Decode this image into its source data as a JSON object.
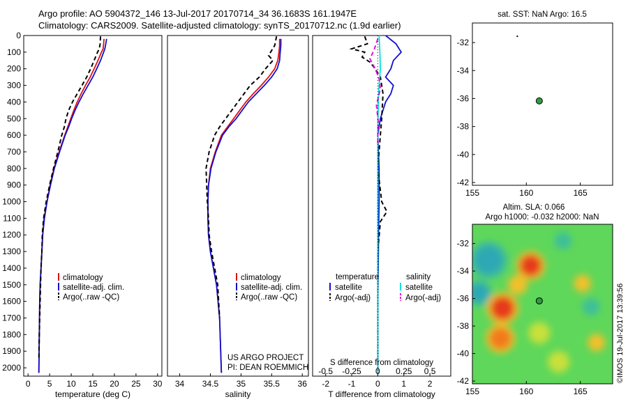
{
  "header": {
    "line1": "Argo profile: AO 5904372_146 13-Jul-2017 20170714_34 36.1683S 161.1947E",
    "line2": "Climatology: CARS2009. Satellite-adjusted climatology: synTS_20170712.nc (1.9d earlier)"
  },
  "watermark": "©IMOS 19-Jul-2017 13:39:56",
  "colors": {
    "climatology": "#e01010",
    "satellite": "#1010d0",
    "argo": "#000000",
    "sal_satellite": "#00e0e0",
    "sal_argo": "#e010e0",
    "float_marker": "#2e9e3e"
  },
  "chart_data": [
    {
      "id": "temperature_profile",
      "type": "line",
      "xlabel": "temperature (deg C)",
      "xlim": [
        -1,
        31
      ],
      "xticks": [
        "0",
        "5",
        "10",
        "15",
        "20",
        "25",
        "30"
      ],
      "ylim": [
        2050,
        0
      ],
      "yticks": [
        "0",
        "100",
        "200",
        "300",
        "400",
        "500",
        "600",
        "700",
        "800",
        "900",
        "1000",
        "1100",
        "1200",
        "1300",
        "1400",
        "1500",
        "1600",
        "1700",
        "1800",
        "1900",
        "2000"
      ],
      "legend": [
        "climatology",
        "satellite-adj. clim.",
        "Argo(..raw -QC)"
      ],
      "series": [
        {
          "name": "climatology",
          "color": "#e01010",
          "x": [
            17.6,
            17.5,
            17.4,
            17.0,
            16.2,
            15.3,
            14.4,
            13.3,
            12.3,
            11.4,
            10.6,
            9.9,
            9.2,
            8.5,
            7.2,
            6.0,
            5.1,
            4.4,
            3.7,
            3.4,
            3.2,
            3.0,
            2.8,
            2.7,
            2.6,
            2.5
          ],
          "y": [
            20,
            50,
            80,
            100,
            150,
            200,
            250,
            300,
            350,
            400,
            450,
            500,
            550,
            600,
            700,
            800,
            900,
            1000,
            1100,
            1200,
            1300,
            1400,
            1500,
            1600,
            1800,
            2030
          ]
        },
        {
          "name": "satellite-adj. clim.",
          "color": "#1010d0",
          "x": [
            18.2,
            18.0,
            17.8,
            17.5,
            16.8,
            15.9,
            15.0,
            13.9,
            12.8,
            11.8,
            10.9,
            10.1,
            9.4,
            8.6,
            7.3,
            6.1,
            5.2,
            4.4,
            3.8,
            3.4,
            3.2,
            3.0,
            2.8,
            2.7,
            2.6,
            2.5
          ],
          "y": [
            20,
            50,
            80,
            100,
            150,
            200,
            250,
            300,
            350,
            400,
            450,
            500,
            550,
            600,
            700,
            800,
            900,
            1000,
            1100,
            1200,
            1300,
            1400,
            1500,
            1600,
            1800,
            2030
          ]
        },
        {
          "name": "Argo(..raw -QC)",
          "color": "#000000",
          "dash": "6,4",
          "x": [
            16.8,
            16.7,
            16.5,
            16.1,
            15.3,
            14.5,
            13.6,
            12.5,
            11.4,
            10.3,
            9.4,
            8.8,
            8.4,
            7.8,
            6.9,
            5.9,
            5.0,
            4.2,
            3.6,
            3.3,
            3.2,
            3.0,
            2.9,
            2.8,
            2.7,
            2.6,
            2.5
          ],
          "y": [
            5,
            50,
            80,
            100,
            150,
            200,
            250,
            300,
            350,
            400,
            450,
            500,
            550,
            600,
            700,
            800,
            900,
            1000,
            1100,
            1200,
            1300,
            1400,
            1500,
            1600,
            1700,
            1800,
            1950
          ]
        }
      ]
    },
    {
      "id": "salinity_profile",
      "type": "line",
      "xlabel": "salinity",
      "xlim": [
        33.8,
        36.1
      ],
      "xticks": [
        "34",
        "34.5",
        "35",
        "35.5",
        "36"
      ],
      "ylim": [
        2050,
        0
      ],
      "legend": [
        "climatology",
        "satellite-adj. clim.",
        "Argo(..raw -QC)"
      ],
      "annotation": [
        "US ARGO PROJECT",
        "PI: DEAN ROEMMICH"
      ],
      "series": [
        {
          "name": "climatology",
          "color": "#e01010",
          "x": [
            35.63,
            35.63,
            35.62,
            35.6,
            35.55,
            35.45,
            35.33,
            35.2,
            35.08,
            34.98,
            34.88,
            34.78,
            34.68,
            34.58,
            34.5,
            34.47,
            34.46,
            34.46,
            34.47,
            34.5,
            34.55,
            34.6,
            34.65,
            34.68
          ],
          "y": [
            20,
            60,
            100,
            150,
            200,
            250,
            300,
            350,
            400,
            450,
            500,
            550,
            600,
            700,
            800,
            900,
            1000,
            1100,
            1200,
            1300,
            1400,
            1500,
            1700,
            2030
          ]
        },
        {
          "name": "satellite-adj. clim.",
          "color": "#1010d0",
          "x": [
            35.65,
            35.65,
            35.64,
            35.63,
            35.59,
            35.5,
            35.38,
            35.25,
            35.12,
            35.02,
            34.92,
            34.8,
            34.7,
            34.59,
            34.51,
            34.47,
            34.46,
            34.46,
            34.47,
            34.5,
            34.55,
            34.6,
            34.65,
            34.68
          ],
          "y": [
            20,
            60,
            100,
            150,
            200,
            250,
            300,
            350,
            400,
            450,
            500,
            550,
            600,
            700,
            800,
            900,
            1000,
            1100,
            1200,
            1300,
            1400,
            1500,
            1700,
            2030
          ]
        },
        {
          "name": "Argo(..raw -QC)",
          "color": "#000000",
          "dash": "6,4",
          "x": [
            35.58,
            35.55,
            35.45,
            35.52,
            35.4,
            35.3,
            35.15,
            35.05,
            34.95,
            34.85,
            34.75,
            34.65,
            34.57,
            34.48,
            34.43,
            34.45,
            34.47,
            34.48,
            34.52,
            34.57,
            34.62,
            34.65
          ],
          "y": [
            5,
            60,
            120,
            150,
            200,
            250,
            300,
            350,
            400,
            450,
            500,
            550,
            600,
            700,
            800,
            1000,
            1100,
            1200,
            1300,
            1400,
            1500,
            1700
          ]
        }
      ]
    },
    {
      "id": "difference_profile",
      "type": "line",
      "xlabel": "T difference from climatology",
      "xlabel2": "S difference from climatology",
      "xlim": [
        -2.5,
        2.8
      ],
      "xticks": [
        "-2",
        "-1",
        "0",
        "1",
        "2"
      ],
      "xticks_s": [
        "-0.5",
        "-0.25",
        "0",
        "0.25",
        "0.5"
      ],
      "ylim": [
        2050,
        0
      ],
      "legend": {
        "temperature_title": "temperature",
        "salinity_title": "salinity",
        "items": [
          "satellite",
          "Argo(-adj)",
          "satellite",
          "Argo(-adj)"
        ]
      },
      "series": [
        {
          "name": "T satellite",
          "color": "#1010d0",
          "x": [
            0.3,
            0.7,
            0.9,
            0.6,
            0.5,
            0.3,
            0.6,
            0.5,
            0.3,
            0.1,
            0.0,
            0.05,
            0.05,
            0.03,
            0.02,
            0.0,
            0.0,
            0.0
          ],
          "y": [
            0,
            50,
            100,
            150,
            200,
            250,
            300,
            350,
            400,
            500,
            600,
            800,
            1000,
            1200,
            1400,
            1600,
            1800,
            2030
          ]
        },
        {
          "name": "T Argo",
          "color": "#000000",
          "dash": "6,4",
          "x": [
            -0.5,
            -0.4,
            -1.0,
            -0.5,
            -0.6,
            -0.3,
            -0.1,
            0.1,
            0.2,
            0.15,
            0.1,
            0.0,
            0.15,
            0.35,
            0.1,
            0.0,
            0.0,
            0.0,
            0.0
          ],
          "y": [
            5,
            50,
            80,
            100,
            130,
            160,
            200,
            250,
            350,
            500,
            600,
            800,
            1000,
            1060,
            1120,
            1300,
            1500,
            1700,
            1950
          ]
        },
        {
          "name": "S satellite",
          "color": "#00e0e0",
          "x": [
            0.05,
            0.08,
            0.1,
            0.05,
            0.02,
            0.0,
            0.0,
            0.0,
            0.0,
            0.0,
            0.0
          ],
          "y": [
            0,
            100,
            200,
            300,
            400,
            600,
            800,
            1000,
            1400,
            1800,
            2030
          ]
        },
        {
          "name": "S Argo",
          "color": "#e010e0",
          "dash": "6,4",
          "x": [
            0.0,
            -0.15,
            -0.3,
            -0.1,
            0.05,
            0.1,
            -0.05,
            0.02,
            0.0,
            0.0
          ],
          "y": [
            20,
            90,
            140,
            200,
            260,
            320,
            420,
            520,
            600,
            660
          ]
        }
      ]
    },
    {
      "id": "sst_map",
      "type": "scatter",
      "title": "sat. SST: NaN Argo: 16.5",
      "xlim": [
        155,
        168
      ],
      "ylim": [
        -42.2,
        -30.6
      ],
      "xticks": [
        "155",
        "160",
        "165"
      ],
      "yticks": [
        "-32",
        "-34",
        "-36",
        "-38",
        "-40",
        "-42"
      ],
      "points": [
        {
          "lon": 161.2,
          "lat": -36.17
        }
      ]
    },
    {
      "id": "sla_map",
      "type": "heatmap",
      "title": "Altim. SLA: 0.066",
      "subtitle": "Argo h1000: -0.032 h2000: NaN",
      "xlim": [
        155,
        168
      ],
      "ylim": [
        -42.2,
        -30.6
      ],
      "xticks": [
        "155",
        "160",
        "165"
      ],
      "yticks": [
        "-32",
        "-34",
        "-36",
        "-38",
        "-40",
        "-42"
      ],
      "points": [
        {
          "lon": 161.2,
          "lat": -36.17
        }
      ],
      "blobs": [
        {
          "lon": 156.5,
          "lat": -33.2,
          "r": 1.3,
          "v": -0.8
        },
        {
          "lon": 155.6,
          "lat": -35.6,
          "r": 0.9,
          "v": -0.7
        },
        {
          "lon": 163.4,
          "lat": -31.8,
          "r": 0.8,
          "v": -0.5
        },
        {
          "lon": 166.0,
          "lat": -36.6,
          "r": 0.8,
          "v": -0.5
        },
        {
          "lon": 160.4,
          "lat": -33.6,
          "r": 1.0,
          "v": 0.9
        },
        {
          "lon": 157.8,
          "lat": -36.7,
          "r": 1.1,
          "v": 1.0
        },
        {
          "lon": 157.6,
          "lat": -38.9,
          "r": 1.0,
          "v": 0.8
        },
        {
          "lon": 159.2,
          "lat": -35.0,
          "r": 0.9,
          "v": 0.5
        },
        {
          "lon": 165.2,
          "lat": -34.9,
          "r": 0.8,
          "v": 0.45
        },
        {
          "lon": 166.5,
          "lat": -39.2,
          "r": 0.8,
          "v": 0.4
        },
        {
          "lon": 161.2,
          "lat": -38.5,
          "r": 1.0,
          "v": 0.35
        },
        {
          "lon": 163.0,
          "lat": -40.6,
          "r": 1.0,
          "v": 0.3
        }
      ]
    }
  ]
}
